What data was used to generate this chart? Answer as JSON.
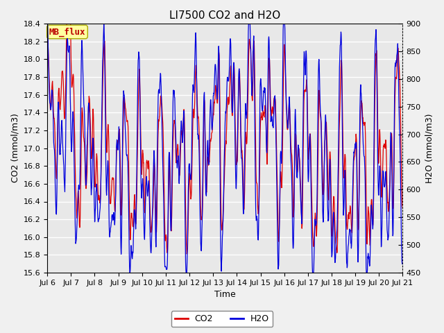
{
  "title": "LI7500 CO2 and H2O",
  "xlabel": "Time",
  "ylabel_left": "CO2 (mmol/m3)",
  "ylabel_right": "H2O (mmol/m3)",
  "co2_ylim": [
    15.6,
    18.4
  ],
  "h2o_ylim": [
    450,
    900
  ],
  "co2_yticks": [
    15.6,
    15.8,
    16.0,
    16.2,
    16.4,
    16.6,
    16.8,
    17.0,
    17.2,
    17.4,
    17.6,
    17.8,
    18.0,
    18.2,
    18.4
  ],
  "h2o_yticks": [
    450,
    500,
    550,
    600,
    650,
    700,
    750,
    800,
    850,
    900
  ],
  "xtick_labels": [
    "Jul 6",
    "Jul 7",
    "Jul 8",
    "Jul 9",
    "Jul 10",
    "Jul 11",
    "Jul 12",
    "Jul 13",
    "Jul 14",
    "Jul 15",
    "Jul 16",
    "Jul 17",
    "Jul 18",
    "Jul 19",
    "Jul 20",
    "Jul 21"
  ],
  "co2_color": "#DD0000",
  "h2o_color": "#0000DD",
  "background_color": "#F0F0F0",
  "plot_bg_color": "#E8E8E8",
  "grid_color": "#FFFFFF",
  "legend_label_co2": "CO2",
  "legend_label_h2o": "H2O",
  "tag_text": "MB_flux",
  "tag_bg": "#FFFFA0",
  "tag_border": "#AAAA00",
  "tag_text_color": "#BB0000",
  "line_width": 0.9,
  "title_fontsize": 11,
  "axis_label_fontsize": 9,
  "tick_fontsize": 8,
  "legend_fontsize": 9
}
